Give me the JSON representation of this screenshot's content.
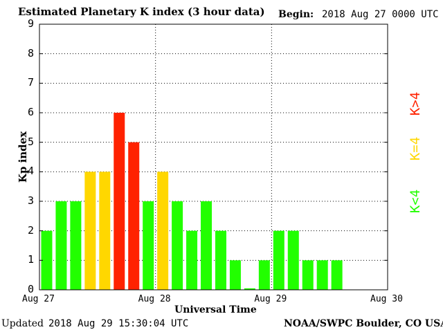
{
  "header": {
    "title": "Estimated Planetary K index (3 hour data)",
    "begin_label": "Begin:",
    "begin_value": "2018 Aug 27 0000 UTC"
  },
  "footer": {
    "updated_label": "Updated",
    "updated_value": "2018 Aug 29 15:30:04 UTC",
    "source": "NOAA/SWPC Boulder, CO USA"
  },
  "legend": {
    "low": "K<4",
    "mid": "K=4",
    "high": "K>4"
  },
  "colors": {
    "low": "#22ff00",
    "mid": "#ffd700",
    "high": "#ff2200",
    "grid": "#000000"
  },
  "chart_data": {
    "type": "bar",
    "title": "Estimated Planetary K index (3 hour data)",
    "xlabel": "Universal Time",
    "ylabel": "Kp index",
    "ylim": [
      0,
      9
    ],
    "yticks": [
      "0",
      "1",
      "2",
      "3",
      "4",
      "5",
      "6",
      "7",
      "8",
      "9"
    ],
    "xticks": [
      "Aug 27",
      "Aug 28",
      "Aug 29",
      "Aug 30"
    ],
    "grid": true,
    "slots_total": 24,
    "values": [
      2,
      3,
      3,
      4,
      4,
      6,
      5,
      3,
      4,
      3,
      2,
      3,
      2,
      1,
      0.05,
      1,
      2,
      2,
      1,
      1,
      1
    ]
  }
}
